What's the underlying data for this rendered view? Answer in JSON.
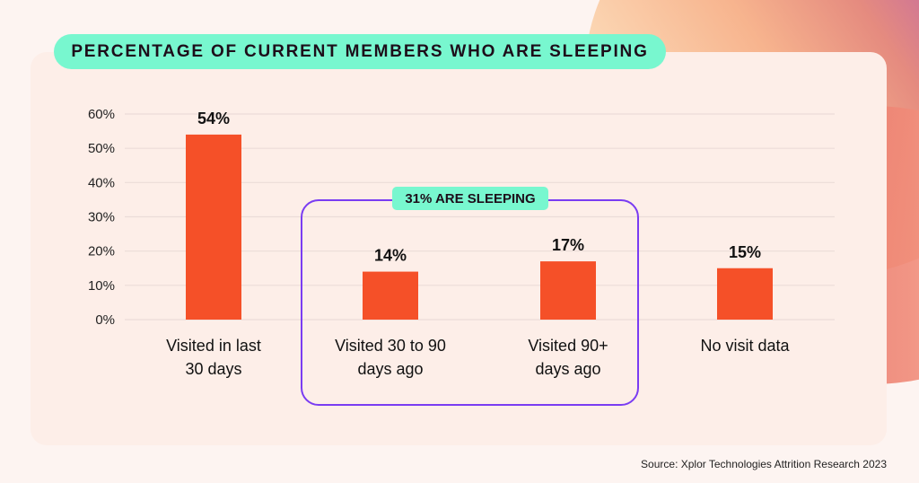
{
  "title": "PERCENTAGE OF CURRENT MEMBERS WHO ARE SLEEPING",
  "source": "Source: Xplor Technologies Attrition Research 2023",
  "group_annotation": "31% ARE SLEEPING",
  "colors": {
    "bar": "#f55028",
    "title_pill": "#78f7cf",
    "group_border": "#7a3cf2",
    "panel": "#fdeee8"
  },
  "chart_data": {
    "type": "bar",
    "title": "PERCENTAGE OF CURRENT MEMBERS WHO ARE SLEEPING",
    "categories": [
      [
        "Visited in last",
        "30 days"
      ],
      [
        "Visited 30 to 90",
        "days ago"
      ],
      [
        "Visited 90+",
        "days ago"
      ],
      [
        "No visit data"
      ]
    ],
    "values": [
      54,
      14,
      17,
      15
    ],
    "data_labels": [
      "54%",
      "14%",
      "17%",
      "15%"
    ],
    "yticks": [
      "0%",
      "10%",
      "20%",
      "30%",
      "40%",
      "50%",
      "60%"
    ],
    "ylim": [
      0,
      60
    ],
    "grid": true,
    "annotation": {
      "text": "31% ARE SLEEPING",
      "categories": [
        1,
        2
      ]
    }
  }
}
